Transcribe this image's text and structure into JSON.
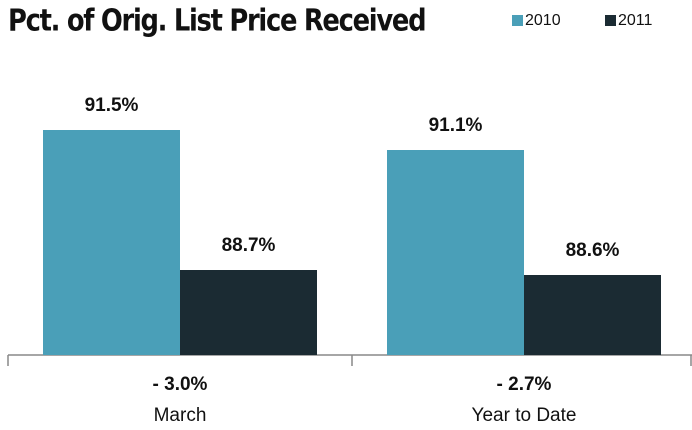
{
  "chart_data": {
    "type": "bar",
    "title": "Pct. of Orig. List Price Received",
    "categories": [
      "March",
      "Year to Date"
    ],
    "changes": [
      "- 3.0%",
      "- 2.7%"
    ],
    "series": [
      {
        "name": "2010",
        "color": "#4a9fb8",
        "values": [
          91.5,
          91.1
        ],
        "value_labels": [
          "91.5%",
          "91.1%"
        ]
      },
      {
        "name": "2011",
        "color": "#1b2b33",
        "values": [
          88.7,
          88.6
        ],
        "value_labels": [
          "88.7%",
          "88.6%"
        ]
      }
    ],
    "ylim": [
      87,
      93
    ],
    "legend": "top-right"
  }
}
